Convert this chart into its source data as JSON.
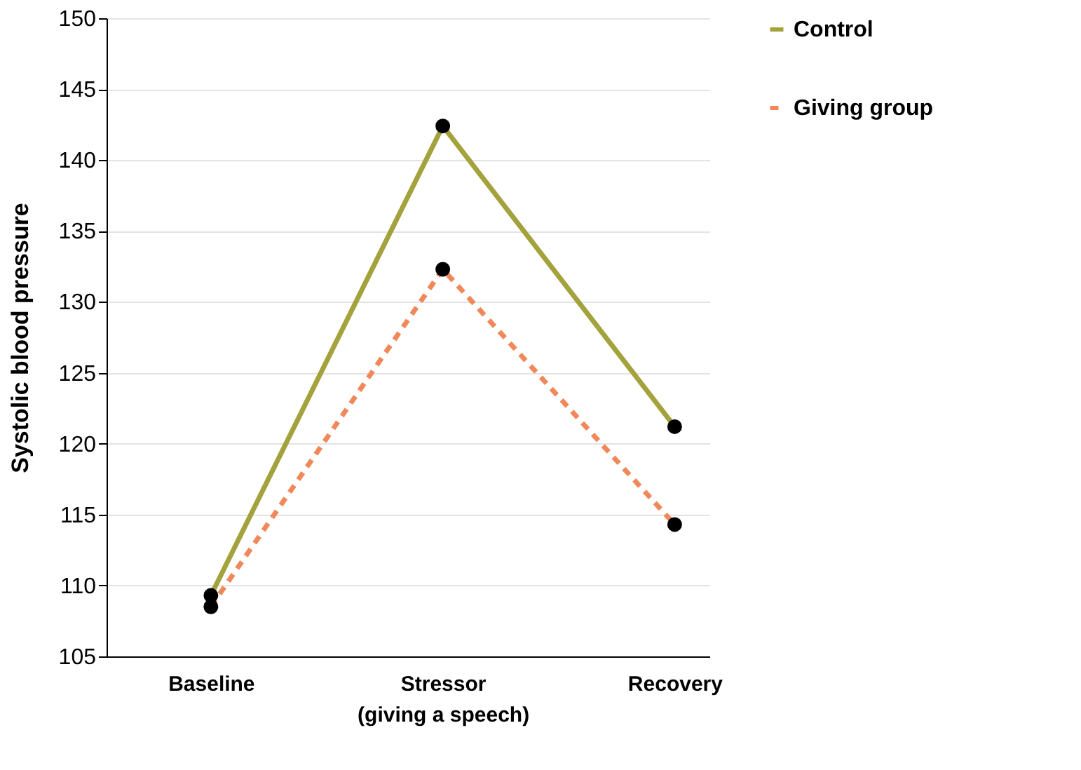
{
  "chart_data": {
    "type": "line",
    "ylabel": "Systolic blood pressure",
    "categories": [
      "Baseline",
      "Stressor\n(giving a speech)",
      "Recovery"
    ],
    "series": [
      {
        "name": "Control",
        "color": "#a3a23c",
        "values": [
          109.3,
          142.4,
          121.2
        ],
        "line_style": "solid"
      },
      {
        "name": "Giving group",
        "color": "#f0885a",
        "values": [
          108.5,
          132.3,
          114.3
        ],
        "line_style": "dashed"
      }
    ],
    "ylim": [
      105,
      150
    ],
    "yticks": [
      105,
      110,
      115,
      120,
      125,
      130,
      135,
      140,
      145,
      150
    ],
    "grid": "y",
    "legend": "right",
    "marker": "circle"
  }
}
